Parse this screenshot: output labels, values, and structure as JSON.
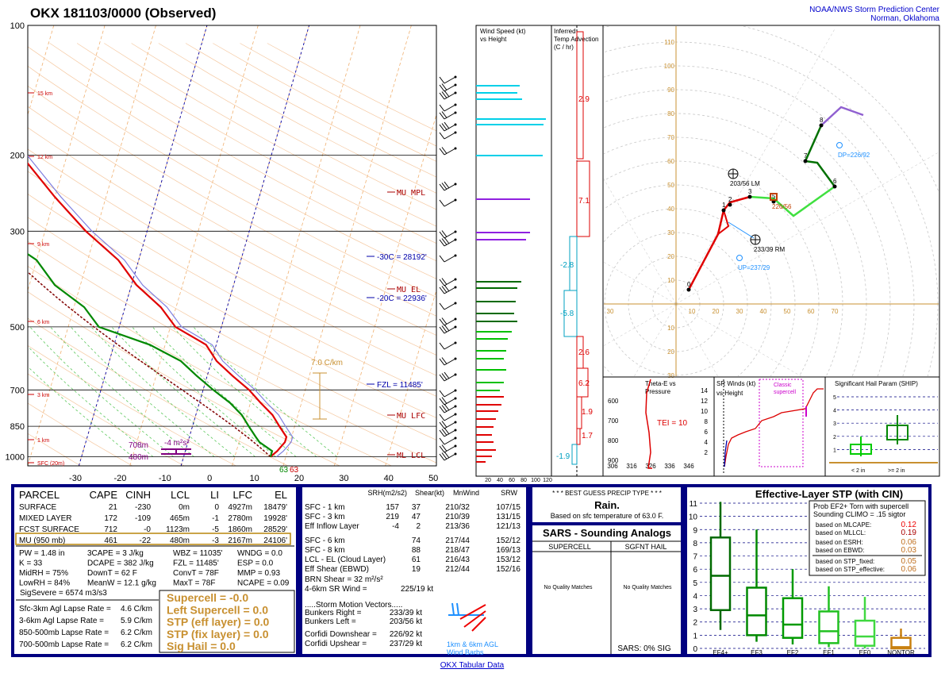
{
  "header": {
    "title": "OKX   181103/0000  (Observed)",
    "org_line1": "NOAA/NWS Storm Prediction Center",
    "org_line2": "Norman, Oklahoma"
  },
  "footer": {
    "link": "OKX Tabular Data"
  },
  "colors": {
    "temp": "#e00000",
    "dewpoint": "#008800",
    "virtual": "#6b6bcc",
    "parcel": "#800000",
    "panel_border": "#000080",
    "gold": "#b8860b",
    "cyan": "#00c8e0",
    "purple": "#8a2be2"
  },
  "skewt": {
    "pressure_labels": [
      "100",
      "200",
      "300",
      "500",
      "700",
      "850",
      "1000"
    ],
    "temp_labels": [
      "-30",
      "-20",
      "-10",
      "0",
      "10",
      "20",
      "30",
      "40",
      "50"
    ],
    "height_labels": [
      "15 km",
      "12 km",
      "9 km",
      "6 km",
      "3 km",
      "1 km",
      "SFC (20m)"
    ],
    "level_labels": [
      "MU MPL",
      "MU EL",
      "MU LFC",
      "ML LCL"
    ],
    "iso_labels": [
      "-30C = 28192'",
      "-20C = 22936'",
      "FZL = 11485'"
    ],
    "lapse_label": "7.0 C/km",
    "srh_label": "-4 m²s²",
    "eff_top": "708m",
    "eff_bot": "480m",
    "sfc_td": "63",
    "sfc_t": "63"
  },
  "chart_data": [
    {
      "type": "line",
      "title": "OKX 181103/0000 (Observed)",
      "xlabel": "",
      "ylabel": "",
      "ylim": [
        1000,
        100
      ],
      "xlim": [
        -30,
        50
      ],
      "series": [
        {
          "name": "Temperature",
          "pressure": [
            1000,
            970,
            925,
            900,
            850,
            800,
            750,
            700,
            650,
            600,
            550,
            500,
            450,
            400,
            350,
            300,
            250,
            200,
            175,
            150,
            125,
            100
          ],
          "values": [
            17,
            18,
            19,
            19,
            17,
            15,
            12,
            9,
            5,
            1,
            -2,
            -9,
            -13,
            -19,
            -24,
            -32,
            -40,
            -49,
            -53,
            -57,
            -61,
            -64
          ]
        },
        {
          "name": "Dewpoint",
          "pressure": [
            1000,
            970,
            925,
            900,
            850,
            800,
            750,
            700,
            650,
            600,
            550,
            500,
            450,
            400,
            350,
            300,
            250,
            200,
            175,
            150,
            125,
            100
          ],
          "values": [
            17,
            17,
            14,
            13,
            11,
            9,
            6,
            2,
            -2,
            -6,
            -13,
            -24,
            -28,
            -35,
            -40,
            -50,
            -60,
            -66,
            -70,
            -74,
            -80,
            -82
          ]
        }
      ]
    },
    {
      "type": "bar",
      "title": "Wind Speed (kt) vs Height",
      "xlabel": "",
      "ylabel": "",
      "categories": [
        "20",
        "40",
        "60",
        "80",
        "100",
        "120"
      ],
      "xlim": [
        0,
        120
      ]
    },
    {
      "type": "line",
      "title": "Hodograph",
      "xlabel": "",
      "ylabel": "",
      "xlim": [
        30,
        110
      ],
      "ylim": [
        30,
        110
      ],
      "ring_labels": [
        "10",
        "20",
        "30",
        "40",
        "50",
        "60",
        "70",
        "80",
        "90",
        "100",
        "110"
      ],
      "axis_labels": [
        "30",
        "10",
        "20",
        "30",
        "40",
        "50",
        "60",
        "70"
      ],
      "hodo_points": [
        "0",
        "1",
        "2",
        "3",
        "5",
        "6",
        "7",
        "8"
      ],
      "annotations": [
        "203/56 LM",
        "233/39 RM",
        "DP=226/92",
        "UP=237/29",
        "226/56"
      ]
    },
    {
      "type": "line",
      "title": "Theta-E vs Pressure",
      "xlabel": "",
      "ylabel": "",
      "y_ticks": [
        "600",
        "700",
        "800",
        "900"
      ],
      "x_ticks": [
        "306",
        "316",
        "326",
        "336",
        "346"
      ],
      "annotation": "TEI = 10"
    },
    {
      "type": "line",
      "title": "SR Winds (kt) vs Height",
      "xlabel": "",
      "ylabel": "",
      "y_ticks": [
        "14",
        "12",
        "10",
        "8",
        "6",
        "4",
        "2"
      ],
      "annotation": "Classic supercell"
    },
    {
      "type": "bar",
      "title": "Significant Hail Param (SHIP)",
      "xlabel": "",
      "ylabel": "",
      "categories": [
        "< 2 in",
        ">= 2 in"
      ],
      "y_ticks": [
        "5",
        "4",
        "3",
        "2",
        "1"
      ]
    },
    {
      "type": "bar",
      "title": "Effective-Layer STP (with CIN)",
      "xlabel": "",
      "ylabel": "",
      "categories": [
        "EF4+",
        "EF3",
        "EF2",
        "EF1",
        "EF0",
        "NONTOR"
      ],
      "y_ticks": [
        "11",
        "10",
        "9",
        "8",
        "7",
        "6",
        "5",
        "4",
        "3",
        "2",
        "1",
        "0"
      ],
      "ylim": [
        0,
        11
      ],
      "boxes": [
        {
          "name": "EF4+",
          "min": 1.4,
          "q1": 2.9,
          "median": 5.5,
          "q3": 8.4,
          "max": 11.1
        },
        {
          "name": "EF3",
          "min": 0.5,
          "q1": 1.0,
          "median": 2.5,
          "q3": 4.6,
          "max": 9.0
        },
        {
          "name": "EF2",
          "min": 0.3,
          "q1": 0.8,
          "median": 1.8,
          "q3": 3.8,
          "max": 6.0
        },
        {
          "name": "EF1",
          "min": 0.1,
          "q1": 0.4,
          "median": 1.3,
          "q3": 2.8,
          "max": 4.7
        },
        {
          "name": "EF0",
          "min": 0.0,
          "q1": 0.2,
          "median": 0.9,
          "q3": 2.1,
          "max": 3.9
        },
        {
          "name": "NONTOR",
          "min": 0.0,
          "q1": 0.0,
          "median": 0.1,
          "q3": 0.8,
          "max": 1.5
        }
      ]
    }
  ],
  "parcel_table": {
    "headers": [
      "PARCEL",
      "CAPE",
      "CINH",
      "LCL",
      "LI",
      "LFC",
      "EL"
    ],
    "rows": [
      [
        "SURFACE",
        "21",
        "-230",
        "0m",
        "0",
        "4927m",
        "18479'"
      ],
      [
        "MIXED LAYER",
        "172",
        "-109",
        "465m",
        "-1",
        "2780m",
        "19928'"
      ],
      [
        "FCST SURFACE",
        "712",
        "-0",
        "1123m",
        "-5",
        "1860m",
        "28529'"
      ],
      [
        "MU   (950 mb)",
        "461",
        "-22",
        "480m",
        "-3",
        "2167m",
        "24106'"
      ]
    ]
  },
  "indices": [
    [
      "PW = 1.48 in",
      "3CAPE = 3 J/kg",
      "WBZ = 11035'",
      "WNDG = 0.0"
    ],
    [
      "K = 33",
      "DCAPE = 382 J/kg",
      "FZL = 11485'",
      "ESP = 0.0"
    ],
    [
      "MidRH = 75%",
      "DownT = 62 F",
      "ConvT = 78F",
      "MMP = 0.93"
    ],
    [
      "LowRH = 84%",
      "MeanW = 12.1 g/kg",
      "MaxT = 78F",
      "NCAPE = 0.09"
    ]
  ],
  "sigsevere": "SigSevere = 6574 m3/s3",
  "lapse_rates": [
    [
      "Sfc-3km Agl Lapse Rate =",
      "4.6 C/km"
    ],
    [
      "3-6km Agl Lapse Rate =",
      "5.9 C/km"
    ],
    [
      "850-500mb Lapse Rate =",
      "6.2 C/km"
    ],
    [
      "700-500mb Lapse Rate =",
      "6.2 C/km"
    ]
  ],
  "composites": [
    "Supercell = -0.0",
    "Left Supercell = 0.0",
    "STP (eff layer) = 0.0",
    "STP (fix layer) = 0.0",
    "Sig Hail = 0.0"
  ],
  "kinematics": {
    "headers": [
      "SRH(m2/s2)",
      "Shear(kt)",
      "MnWind",
      "SRW"
    ],
    "rows": [
      [
        "SFC - 1 km",
        "157",
        "37",
        "210/32",
        "107/15"
      ],
      [
        "SFC - 3 km",
        "219",
        "47",
        "210/39",
        "131/15"
      ],
      [
        "Eff Inflow Layer",
        "-4",
        "2",
        "213/36",
        "121/13"
      ],
      [
        "SFC - 6 km",
        "",
        "74",
        "217/44",
        "152/12"
      ],
      [
        "SFC - 8 km",
        "",
        "88",
        "218/47",
        "169/13"
      ],
      [
        "LCL - EL (Cloud Layer)",
        "",
        "61",
        "216/43",
        "153/12"
      ],
      [
        "Eff Shear (EBWD)",
        "",
        "19",
        "212/44",
        "152/16"
      ]
    ],
    "brn_shear": "BRN Shear = 32 m²/s²",
    "sr_wind": "4-6km SR Wind =",
    "sr_wind_val": "225/19 kt",
    "storm_motion_title": ".....Storm Motion Vectors.....",
    "motions": [
      [
        "Bunkers Right =",
        "233/39 kt"
      ],
      [
        "Bunkers Left =",
        "203/56 kt"
      ],
      [
        "Corfidi Downshear =",
        "226/92 kt"
      ],
      [
        "Corfidi Upshear =",
        "237/29 kt"
      ]
    ],
    "barb_label1": "1km & 6km AGL",
    "barb_label2": "Wind Barbs"
  },
  "precip": {
    "title": "* * * BEST GUESS PRECIP TYPE * * *",
    "value": "Rain.",
    "sub": "Based on sfc temperature of 63.0 F."
  },
  "sars": {
    "title": "SARS - Sounding Analogs",
    "col1": "SUPERCELL",
    "col2": "SGFNT HAIL",
    "nomatch1": "No Quality Matches",
    "nomatch2": "No Quality Matches",
    "sig": "SARS:  0% SIG"
  },
  "stp": {
    "title": "Effective-Layer STP (with CIN)",
    "prob_line1": "Prob EF2+ Torn with supercell",
    "prob_line2": "Sounding CLIMO = .15 sigtor",
    "items": [
      [
        "based on MLCAPE:",
        "0.12"
      ],
      [
        "based on MLLCL:",
        "0.19"
      ],
      [
        "based on ESRH:",
        "0.06"
      ],
      [
        "based on EBWD:",
        "0.03"
      ],
      [
        "based on STP_fixed:",
        "0.05"
      ],
      [
        "based on STP_effective:",
        "0.06"
      ]
    ]
  },
  "panel_titles": {
    "wind_speed_1": "Wind Speed (kt)",
    "wind_speed_2": "vs Height",
    "temp_adv_1": "Inferred",
    "temp_adv_2": "Temp Advection",
    "temp_adv_3": "(C / hr)",
    "theta_1": "Theta-E vs",
    "theta_2": "Pressure",
    "sr_1": "SR Winds (kt)",
    "sr_2": "vs Height",
    "ship": "Significant Hail Param (SHIP)"
  },
  "temp_adv_values": [
    "2.9",
    "7.1",
    "-2.8",
    "-5.8",
    "2.6",
    "6.2",
    "1.9",
    "1.7",
    "-1.9"
  ]
}
